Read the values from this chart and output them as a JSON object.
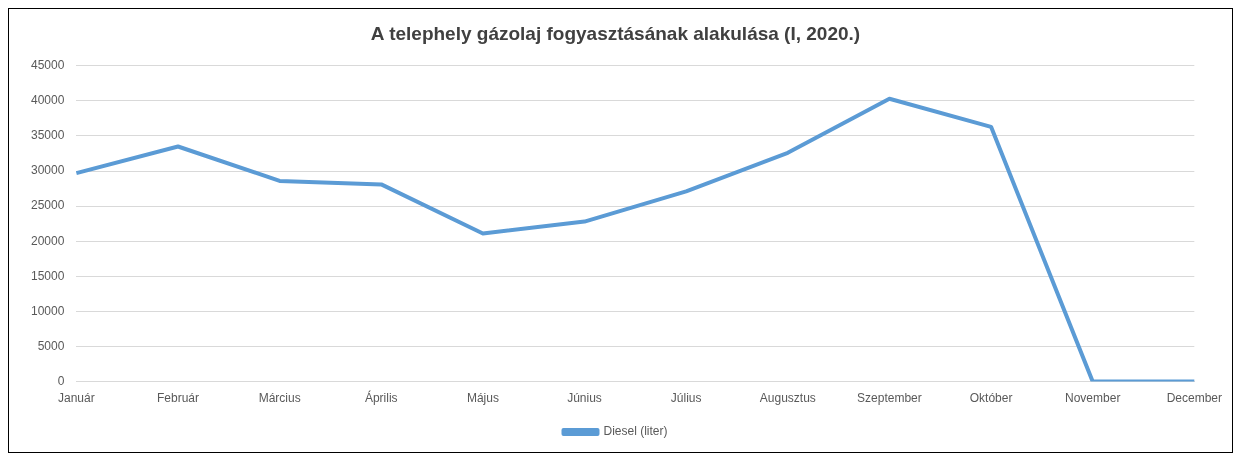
{
  "chart_data": {
    "type": "line",
    "title": "A telephely gázolaj fogyasztásának alakulása (I, 2020.)",
    "categories": [
      "Január",
      "Február",
      "Március",
      "Április",
      "Május",
      "Június",
      "Július",
      "Augusztus",
      "Szeptember",
      "Október",
      "November",
      "December"
    ],
    "series": [
      {
        "name": "Diesel (liter)",
        "color": "#5b9bd5",
        "values": [
          29700,
          33500,
          28600,
          28100,
          21100,
          22800,
          27100,
          32600,
          40300,
          36300,
          0,
          0
        ]
      }
    ],
    "ylim": [
      0,
      45000
    ],
    "yticks": [
      0,
      5000,
      10000,
      15000,
      20000,
      25000,
      30000,
      35000,
      40000,
      45000
    ],
    "grid": "y",
    "legend": "bottom",
    "marker": "none",
    "line_style": "solid"
  }
}
